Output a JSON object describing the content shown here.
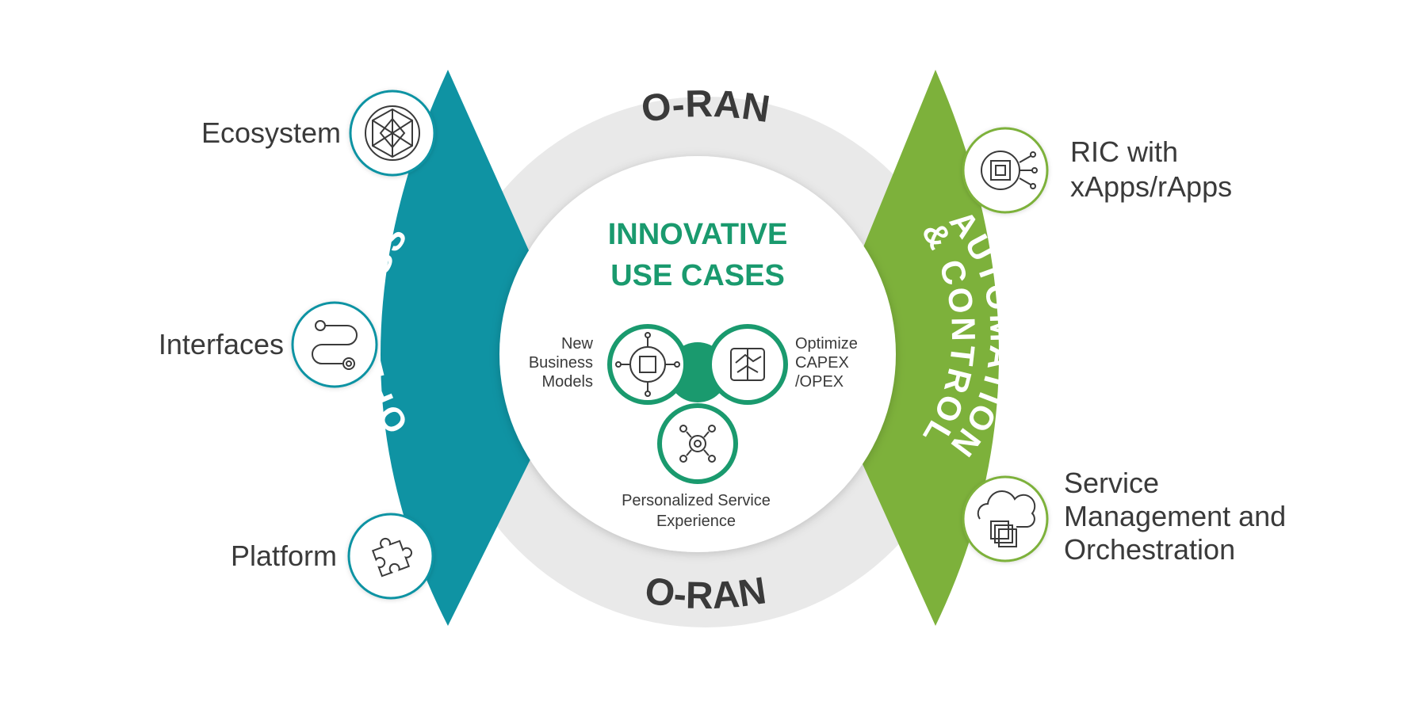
{
  "ring": {
    "top_label": "O-RAN",
    "bottom_label": "O-RAN"
  },
  "center": {
    "title_line1": "INNOVATIVE",
    "title_line2": "USE CASES",
    "use_cases": {
      "left_line1": "New",
      "left_line2": "Business",
      "left_line3": "Models",
      "right_line1": "Optimize",
      "right_line2": "CAPEX",
      "right_line3": "/OPEX",
      "bottom_line1": "Personalized Service",
      "bottom_line2": "Experience"
    }
  },
  "left_wing": {
    "label": "OPENNESS",
    "items": [
      {
        "label": "Ecosystem",
        "icon": "geodesic-sphere-icon"
      },
      {
        "label": "Interfaces",
        "icon": "interface-flow-icon"
      },
      {
        "label": "Platform",
        "icon": "puzzle-piece-icon"
      }
    ]
  },
  "right_wing": {
    "label_line1": "AUTOMATION",
    "label_line2": "& CONTROL",
    "items": [
      {
        "label_line1": "RIC with",
        "label_line2": "xApps/rApps",
        "icon": "chip-gear-icon"
      },
      {
        "label_line1": "Service",
        "label_line2": "Management and",
        "label_line3": "Orchestration",
        "icon": "cloud-stack-icon"
      }
    ]
  },
  "colors": {
    "teal": "#0F93A3",
    "green": "#7DB13B",
    "center_green": "#1A9A6E",
    "ring_gray": "#E9E9E9",
    "text_dark": "#3A3A3A"
  }
}
